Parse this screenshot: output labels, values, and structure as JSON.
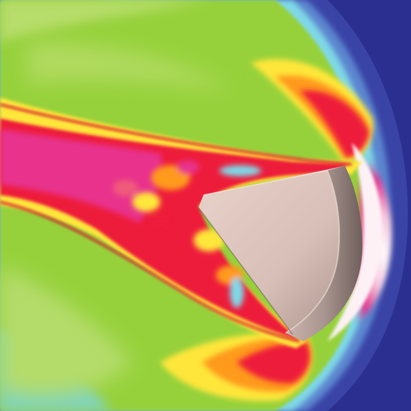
{
  "image": {
    "subject": "reentry-capsule-flow-field",
    "palette": {
      "freestream": "#2b2f8f",
      "outer_shock": "#3c46a8",
      "cool_flow": "#8fd12a",
      "light_green": "#a6d64a",
      "cyan": "#7fd8e6",
      "yellow": "#ffe63a",
      "orange": "#ff9a1f",
      "red": "#ee1c3a",
      "magenta": "#e8338c",
      "pink": "#f4a3c8",
      "white_hot": "#fbeef5",
      "capsule_body": "#dcc3bb",
      "capsule_shadow": "#8e7b76",
      "heat_shield": "#b39f99"
    }
  }
}
